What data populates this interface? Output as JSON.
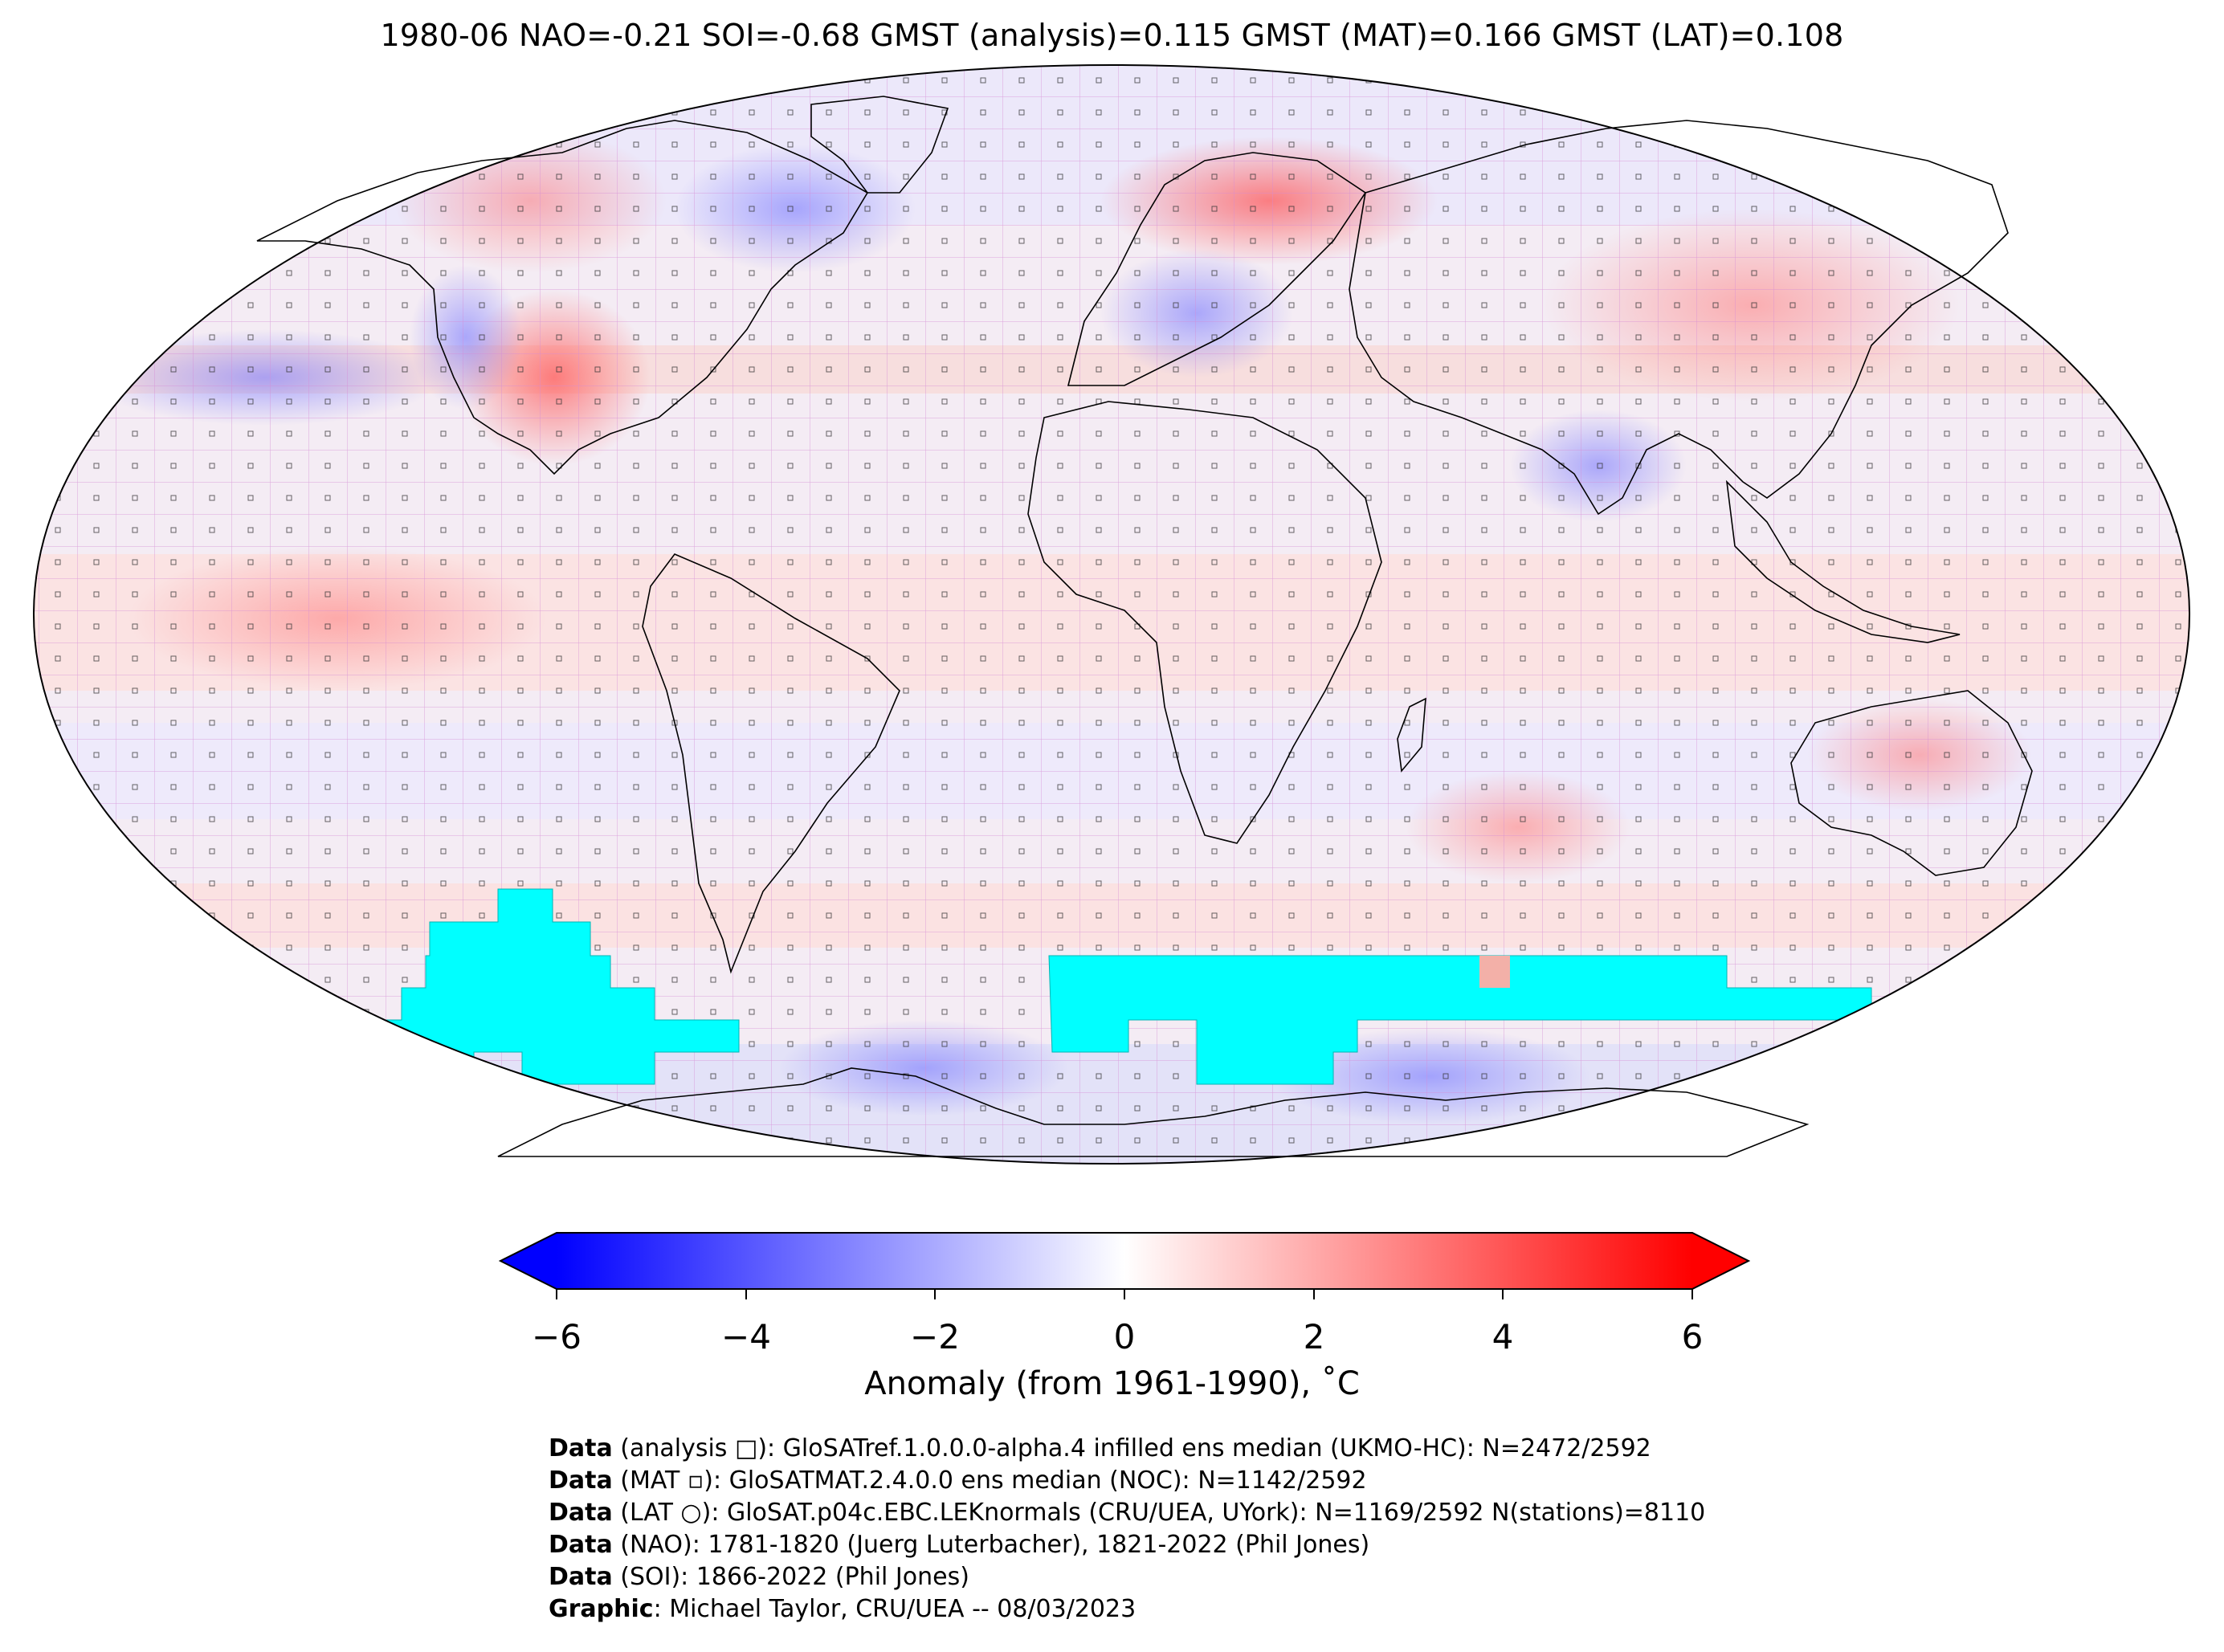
{
  "title": "1980-06 NAO=-0.21 SOI=-0.68 GMST (analysis)=0.115 GMST (MAT)=0.166 GMST (LAT)=0.108",
  "colorbar": {
    "label": "Anomaly (from 1961-1990), ˚C",
    "ticks": [
      "−6",
      "−4",
      "−2",
      "0",
      "2",
      "4",
      "6"
    ],
    "tick_values": [
      -6,
      -4,
      -2,
      0,
      2,
      4,
      6
    ],
    "range": [
      -6,
      6
    ],
    "colormap": [
      "#0000ff",
      "#ffffff",
      "#ff0000"
    ],
    "extend": "both"
  },
  "colors": {
    "missing_data": "#00ffff",
    "grid_lines": "#d58ad5",
    "coastline": "#000000"
  },
  "credits": [
    {
      "key": "Data",
      "text": " (analysis □): GloSATref.1.0.0.0-alpha.4 infilled ens median (UKMO-HC): N=2472/2592"
    },
    {
      "key": "Data",
      "text": " (MAT ▫): GloSATMAT.2.4.0.0 ens median (NOC): N=1142/2592"
    },
    {
      "key": "Data",
      "text": " (LAT ○): GloSAT.p04c.EBC.LEKnormals (CRU/UEA, UYork): N=1169/2592 N(stations)=8110"
    },
    {
      "key": "Data",
      "text": " (NAO): 1781-1820 (Juerg Luterbacher), 1821-2022 (Phil Jones)"
    },
    {
      "key": "Data",
      "text": " (SOI): 1866-2022 (Phil Jones)"
    },
    {
      "key": "Graphic",
      "text": ": Michael Taylor, CRU/UEA -- 08/03/2023"
    }
  ]
}
